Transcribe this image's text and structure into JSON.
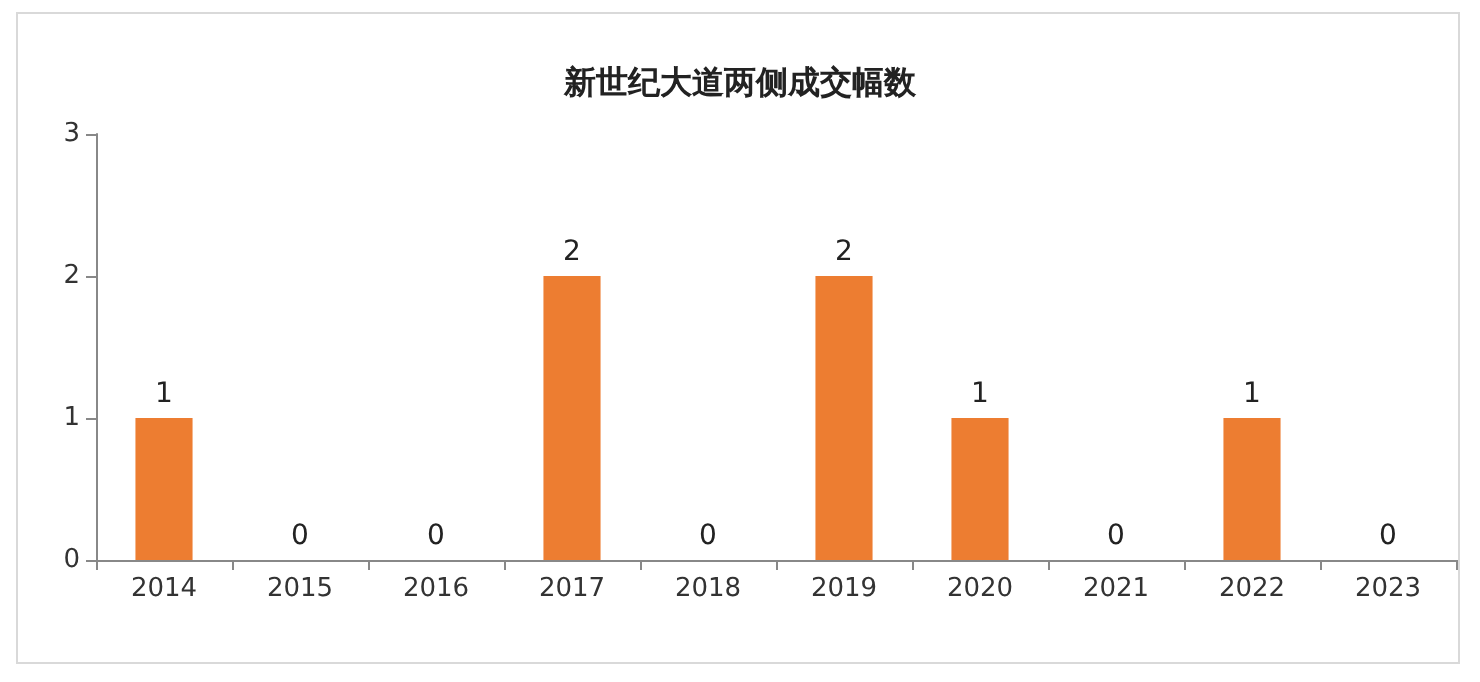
{
  "chart_data": {
    "type": "bar",
    "title": "新世纪大道两侧成交幅数",
    "categories": [
      "2014",
      "2015",
      "2016",
      "2017",
      "2018",
      "2019",
      "2020",
      "2021",
      "2022",
      "2023"
    ],
    "values": [
      1,
      0,
      0,
      2,
      0,
      2,
      1,
      0,
      1,
      0
    ],
    "color": "#ed7d31",
    "ylim": [
      0,
      3
    ],
    "yticks": [
      0,
      1,
      2,
      3
    ],
    "grid": false,
    "data_labels": true
  }
}
